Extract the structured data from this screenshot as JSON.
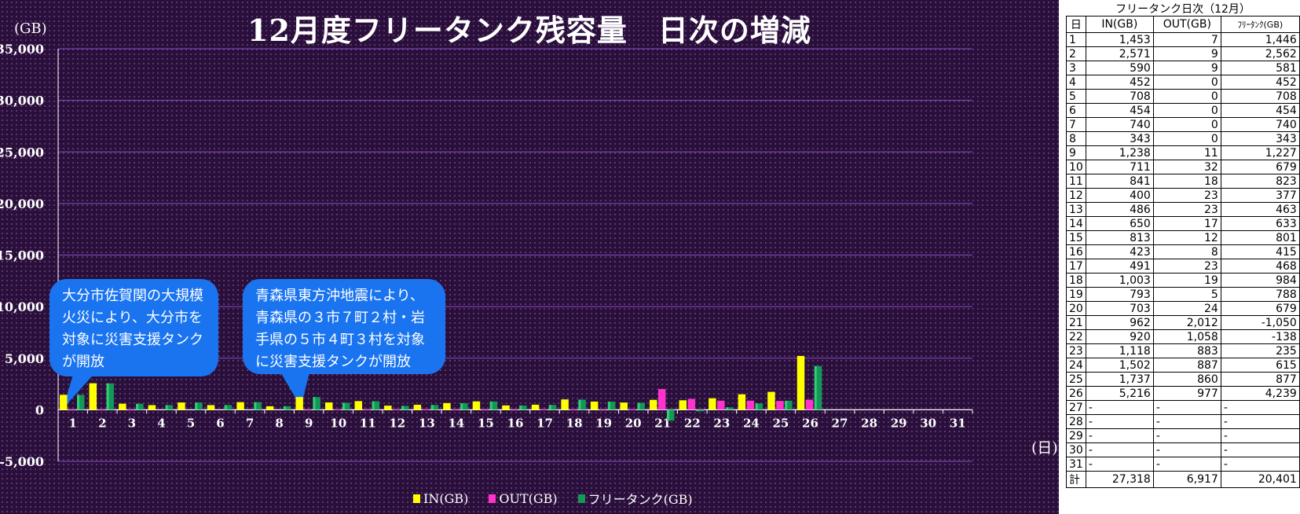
{
  "chart_title": "12月度フリータンク残容量　日次の増減",
  "y_unit": "(GB)",
  "x_unit": "(日)",
  "callouts": [
    {
      "text": "大分市佐賀関の大規模火災により、大分市を対象に災害支援タンクが開放",
      "day": 1
    },
    {
      "text": "青森県東方沖地震により、青森県の３市７町２村・岩手県の５市４町３村を対象に災害支援タンクが開放",
      "day": 9
    }
  ],
  "colors": {
    "in": "#ffff00",
    "out": "#ff33cc",
    "free": "#119955",
    "background": "#2a0f3a",
    "gridline": "#8a4fc0",
    "callout": "#1a74f0"
  },
  "chart_data": {
    "type": "bar",
    "title": "12月度フリータンク残容量　日次の増減",
    "xlabel": "(日)",
    "ylabel": "(GB)",
    "ylim": [
      -5000,
      35000
    ],
    "yticks": [
      -5000,
      0,
      5000,
      10000,
      15000,
      20000,
      25000,
      30000,
      35000
    ],
    "ytick_labels": [
      "-5,000",
      "0",
      "5,000",
      "10,000",
      "15,000",
      "20,000",
      "25,000",
      "30,000",
      "35,000"
    ],
    "grid": true,
    "legend": "bottom",
    "categories": [
      "1",
      "2",
      "3",
      "4",
      "5",
      "6",
      "7",
      "8",
      "9",
      "10",
      "11",
      "12",
      "13",
      "14",
      "15",
      "16",
      "17",
      "18",
      "19",
      "20",
      "21",
      "22",
      "23",
      "24",
      "25",
      "26",
      "27",
      "28",
      "29",
      "30",
      "31"
    ],
    "series": [
      {
        "name": "IN(GB)",
        "values": [
          1453,
          2571,
          590,
          452,
          708,
          454,
          740,
          343,
          1238,
          711,
          841,
          400,
          486,
          650,
          813,
          423,
          491,
          1003,
          793,
          703,
          962,
          920,
          1118,
          1502,
          1737,
          5216,
          null,
          null,
          null,
          null,
          null
        ]
      },
      {
        "name": "OUT(GB)",
        "values": [
          7,
          9,
          9,
          0,
          0,
          0,
          0,
          0,
          11,
          32,
          18,
          23,
          23,
          17,
          12,
          8,
          23,
          19,
          5,
          24,
          2012,
          1058,
          883,
          887,
          860,
          977,
          null,
          null,
          null,
          null,
          null
        ]
      },
      {
        "name": "フリータンク(GB)",
        "values": [
          1446,
          2562,
          581,
          452,
          708,
          454,
          740,
          343,
          1227,
          679,
          823,
          377,
          463,
          633,
          801,
          415,
          468,
          984,
          788,
          679,
          -1050,
          -138,
          235,
          615,
          877,
          4239,
          null,
          null,
          null,
          null,
          null
        ]
      }
    ]
  },
  "table": {
    "title": "フリータンク日次（12月）",
    "headers": [
      "日",
      "IN(GB)",
      "OUT(GB)",
      "ﾌﾘｰﾀﾝｸ(GB)"
    ],
    "rows": [
      [
        "1",
        "1,453",
        "7",
        "1,446"
      ],
      [
        "2",
        "2,571",
        "9",
        "2,562"
      ],
      [
        "3",
        "590",
        "9",
        "581"
      ],
      [
        "4",
        "452",
        "0",
        "452"
      ],
      [
        "5",
        "708",
        "0",
        "708"
      ],
      [
        "6",
        "454",
        "0",
        "454"
      ],
      [
        "7",
        "740",
        "0",
        "740"
      ],
      [
        "8",
        "343",
        "0",
        "343"
      ],
      [
        "9",
        "1,238",
        "11",
        "1,227"
      ],
      [
        "10",
        "711",
        "32",
        "679"
      ],
      [
        "11",
        "841",
        "18",
        "823"
      ],
      [
        "12",
        "400",
        "23",
        "377"
      ],
      [
        "13",
        "486",
        "23",
        "463"
      ],
      [
        "14",
        "650",
        "17",
        "633"
      ],
      [
        "15",
        "813",
        "12",
        "801"
      ],
      [
        "16",
        "423",
        "8",
        "415"
      ],
      [
        "17",
        "491",
        "23",
        "468"
      ],
      [
        "18",
        "1,003",
        "19",
        "984"
      ],
      [
        "19",
        "793",
        "5",
        "788"
      ],
      [
        "20",
        "703",
        "24",
        "679"
      ],
      [
        "21",
        "962",
        "2,012",
        "-1,050"
      ],
      [
        "22",
        "920",
        "1,058",
        "-138"
      ],
      [
        "23",
        "1,118",
        "883",
        "235"
      ],
      [
        "24",
        "1,502",
        "887",
        "615"
      ],
      [
        "25",
        "1,737",
        "860",
        "877"
      ],
      [
        "26",
        "5,216",
        "977",
        "4,239"
      ],
      [
        "27",
        "-",
        "-",
        "-"
      ],
      [
        "28",
        "-",
        "-",
        "-"
      ],
      [
        "29",
        "-",
        "-",
        "-"
      ],
      [
        "30",
        "-",
        "-",
        "-"
      ],
      [
        "31",
        "-",
        "-",
        "-"
      ]
    ],
    "total": [
      "計",
      "27,318",
      "6,917",
      "20,401"
    ]
  }
}
